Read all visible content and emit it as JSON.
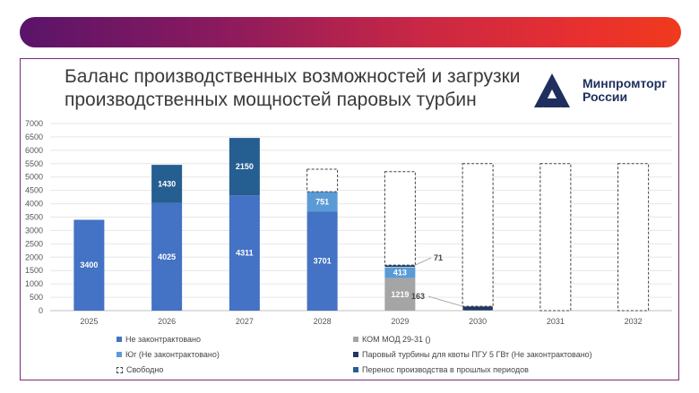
{
  "title": "Баланс производственных возможностей и загрузки производственных мощностей паровых турбин",
  "logo": {
    "line1": "Минпромторг",
    "line2": "России"
  },
  "colors": {
    "not_contracted": "#4472c4",
    "kom_mod": "#a5a5a5",
    "south": "#5b9bd5",
    "steam_pgu": "#1f3864",
    "transfer": "#255e91",
    "free_border": "#404040"
  },
  "chart_data": {
    "type": "bar",
    "stacked": true,
    "categories": [
      "2025",
      "2026",
      "2027",
      "2028",
      "2029",
      "2030",
      "2031",
      "2032"
    ],
    "ylim": [
      0,
      7000
    ],
    "yticks": [
      0,
      500,
      1000,
      1500,
      2000,
      2500,
      3000,
      3500,
      4000,
      4500,
      5000,
      5500,
      6000,
      6500,
      7000
    ],
    "series": [
      {
        "key": "not_contracted",
        "name": "Не законтрактовано",
        "values": [
          3400,
          4025,
          4311,
          3701,
          0,
          0,
          0,
          0
        ],
        "labels": [
          "3400",
          "4025",
          "4311",
          "3701",
          "",
          "",
          "",
          ""
        ]
      },
      {
        "key": "kom_mod",
        "name": "КОМ МОД 29-31 ()",
        "values": [
          0,
          0,
          0,
          0,
          1219,
          0,
          0,
          0
        ],
        "labels": [
          "",
          "",
          "",
          "",
          "1219",
          "",
          "",
          ""
        ]
      },
      {
        "key": "south",
        "name": "Юг (Не законтрактовано)",
        "values": [
          0,
          0,
          0,
          751,
          413,
          0,
          0,
          0
        ],
        "labels": [
          "",
          "",
          "",
          "751",
          "413",
          "",
          "",
          ""
        ]
      },
      {
        "key": "steam_pgu",
        "name": "Паровый турбины для квоты ПГУ 5 ГВт (Не законтрактовано)",
        "values": [
          0,
          0,
          0,
          0,
          71,
          163,
          0,
          0
        ],
        "labels": [
          "",
          "",
          "",
          "",
          "",
          "",
          "",
          ""
        ]
      },
      {
        "key": "transfer",
        "name": "Перенос производства в прошлых периодов",
        "values": [
          0,
          1430,
          2150,
          0,
          0,
          0,
          0,
          0
        ],
        "labels": [
          "",
          "1430",
          "2150",
          "",
          "",
          "",
          "",
          ""
        ]
      },
      {
        "key": "free",
        "name": "Свободно",
        "values": [
          0,
          0,
          0,
          838,
          3497,
          5337,
          5500,
          5500
        ],
        "labels": [
          "",
          "",
          "",
          "",
          "",
          "",
          "",
          ""
        ]
      }
    ],
    "annotations": [
      {
        "category": "2029",
        "text": "71"
      },
      {
        "category": "2030",
        "text": "163"
      }
    ],
    "legend": [
      {
        "key": "not_contracted",
        "text": "Не законтрактовано"
      },
      {
        "key": "kom_mod",
        "text": "КОМ МОД 29-31 ()"
      },
      {
        "key": "south",
        "text": "Юг (Не законтрактовано)"
      },
      {
        "key": "steam_pgu",
        "text": "Паровый турбины для квоты ПГУ 5 ГВт (Не законтрактовано)"
      },
      {
        "key": "free",
        "text": "Свободно"
      },
      {
        "key": "transfer",
        "text": "Перенос производства в прошлых периодов"
      }
    ]
  }
}
